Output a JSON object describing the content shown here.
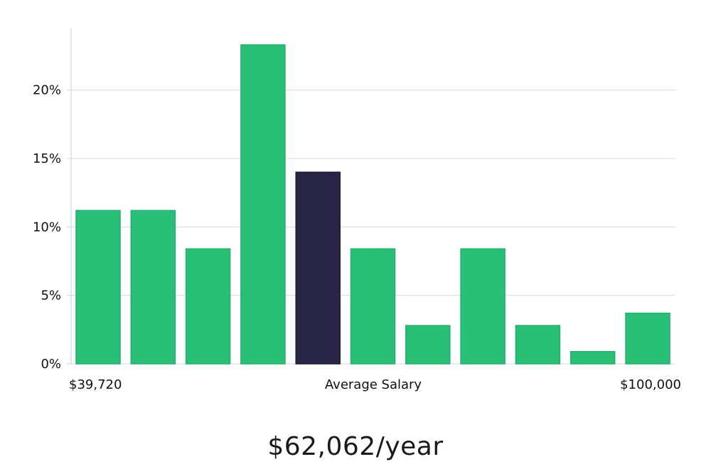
{
  "chart_data": {
    "type": "bar",
    "values": [
      11.2,
      11.2,
      8.4,
      23.3,
      14.0,
      8.4,
      2.8,
      8.4,
      2.8,
      0.9,
      3.7
    ],
    "highlight_index": 4,
    "y_ticks": [
      "0%",
      "5%",
      "10%",
      "15%",
      "20%"
    ],
    "y_tick_values": [
      0,
      5,
      10,
      15,
      20
    ],
    "ylim": [
      0,
      24.5
    ],
    "x_min_label": "$39,720",
    "x_center_label": "Average Salary",
    "x_max_label": "$100,000",
    "grid": true
  },
  "colors": {
    "bar": "#2abf76",
    "highlight": "#282546",
    "grid": "#d9d9d9",
    "axis": "#cfcfcf"
  },
  "summary": {
    "average_salary": "$62,062/year"
  }
}
